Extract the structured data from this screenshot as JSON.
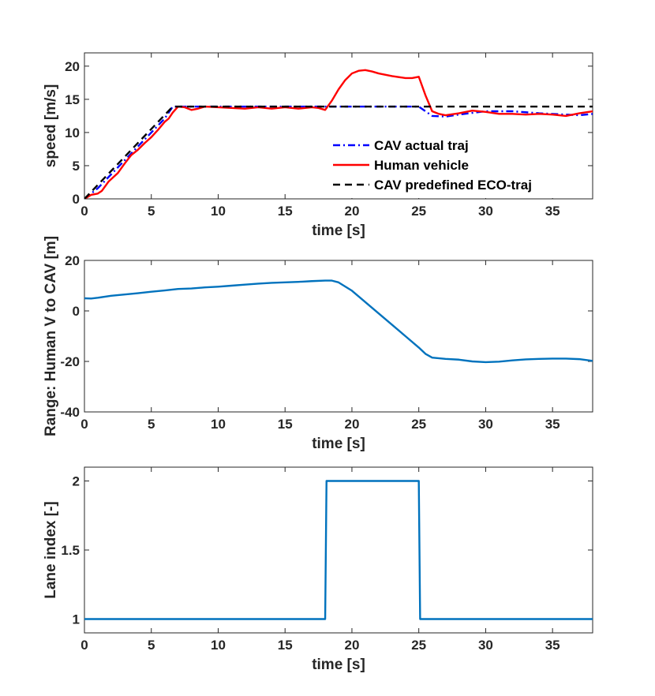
{
  "chart_data": [
    {
      "type": "line",
      "title": "",
      "xlabel": "time [s]",
      "ylabel": "speed [m/s]",
      "xlim": [
        0,
        38
      ],
      "ylim": [
        0,
        22
      ],
      "xticks": [
        0,
        5,
        10,
        15,
        20,
        25,
        30,
        35
      ],
      "yticks": [
        0,
        5,
        10,
        15,
        20
      ],
      "legend": {
        "position": "bottom-right"
      },
      "series": [
        {
          "name": "CAV actual traj",
          "color": "#0000ff",
          "style": "dashdot",
          "points": [
            [
              0,
              0
            ],
            [
              1,
              1.6
            ],
            [
              2,
              3.7
            ],
            [
              3,
              5.8
            ],
            [
              4,
              7.9
            ],
            [
              5,
              10.0
            ],
            [
              6,
              12.1
            ],
            [
              6.6,
              13.9
            ],
            [
              8,
              13.9
            ],
            [
              12,
              13.9
            ],
            [
              16,
              13.9
            ],
            [
              20,
              13.9
            ],
            [
              24,
              13.9
            ],
            [
              25,
              13.9
            ],
            [
              25.5,
              13.2
            ],
            [
              26,
              12.5
            ],
            [
              27,
              12.4
            ],
            [
              28,
              12.7
            ],
            [
              30,
              13.2
            ],
            [
              32,
              13.2
            ],
            [
              34,
              12.9
            ],
            [
              36,
              12.7
            ],
            [
              37,
              12.6
            ],
            [
              38,
              12.8
            ]
          ]
        },
        {
          "name": "Human vehicle",
          "color": "#ff0000",
          "style": "solid",
          "points": [
            [
              0,
              0
            ],
            [
              0.5,
              0.6
            ],
            [
              1,
              0.8
            ],
            [
              1.3,
              1.2
            ],
            [
              1.8,
              2.6
            ],
            [
              2.5,
              3.9
            ],
            [
              3,
              5.3
            ],
            [
              3.5,
              6.6
            ],
            [
              4,
              7.4
            ],
            [
              4.5,
              8.4
            ],
            [
              5,
              9.3
            ],
            [
              5.5,
              10.4
            ],
            [
              6,
              11.6
            ],
            [
              6.3,
              12.1
            ],
            [
              6.6,
              13.0
            ],
            [
              7,
              13.9
            ],
            [
              7.5,
              13.8
            ],
            [
              8,
              13.4
            ],
            [
              8.5,
              13.6
            ],
            [
              9,
              13.9
            ],
            [
              10,
              13.8
            ],
            [
              11,
              13.7
            ],
            [
              12,
              13.6
            ],
            [
              13,
              13.8
            ],
            [
              14,
              13.6
            ],
            [
              15,
              13.8
            ],
            [
              16,
              13.6
            ],
            [
              17,
              13.8
            ],
            [
              17.5,
              13.7
            ],
            [
              18,
              13.4
            ],
            [
              18.5,
              14.8
            ],
            [
              19,
              16.5
            ],
            [
              19.5,
              17.9
            ],
            [
              20,
              18.9
            ],
            [
              20.5,
              19.3
            ],
            [
              21,
              19.4
            ],
            [
              21.5,
              19.2
            ],
            [
              22,
              18.9
            ],
            [
              23,
              18.5
            ],
            [
              24,
              18.2
            ],
            [
              24.5,
              18.2
            ],
            [
              25,
              18.4
            ],
            [
              25.5,
              15.6
            ],
            [
              26,
              13.2
            ],
            [
              26.5,
              12.8
            ],
            [
              27,
              12.6
            ],
            [
              28,
              12.9
            ],
            [
              29,
              13.3
            ],
            [
              30,
              13.1
            ],
            [
              31,
              12.8
            ],
            [
              32,
              12.8
            ],
            [
              33,
              12.7
            ],
            [
              34,
              12.8
            ],
            [
              35,
              12.7
            ],
            [
              36,
              12.5
            ],
            [
              37,
              12.9
            ],
            [
              38,
              13.2
            ]
          ]
        },
        {
          "name": "CAV predefined ECO-traj",
          "color": "#000000",
          "style": "dashed",
          "points": [
            [
              0,
              0
            ],
            [
              6.6,
              13.9
            ],
            [
              38,
              13.9
            ]
          ]
        }
      ]
    },
    {
      "type": "line",
      "title": "",
      "xlabel": "time [s]",
      "ylabel": "Range: Human V to CAV [m]",
      "xlim": [
        0,
        38
      ],
      "ylim": [
        -40,
        20
      ],
      "xticks": [
        0,
        5,
        10,
        15,
        20,
        25,
        30,
        35
      ],
      "yticks": [
        -40,
        -20,
        0,
        20
      ],
      "series": [
        {
          "name": "range",
          "color": "#0072bd",
          "style": "solid",
          "points": [
            [
              0,
              5.0
            ],
            [
              0.5,
              4.9
            ],
            [
              1,
              5.2
            ],
            [
              2,
              6.0
            ],
            [
              3,
              6.5
            ],
            [
              4,
              7.0
            ],
            [
              5,
              7.6
            ],
            [
              6,
              8.1
            ],
            [
              7,
              8.7
            ],
            [
              8,
              8.9
            ],
            [
              9,
              9.3
            ],
            [
              10,
              9.6
            ],
            [
              11,
              10.0
            ],
            [
              12,
              10.4
            ],
            [
              13,
              10.8
            ],
            [
              14,
              11.1
            ],
            [
              15,
              11.3
            ],
            [
              16,
              11.5
            ],
            [
              17,
              11.8
            ],
            [
              18,
              12.0
            ],
            [
              18.5,
              12.0
            ],
            [
              19,
              11.3
            ],
            [
              20,
              8.0
            ],
            [
              21,
              3.5
            ],
            [
              22,
              -1.0
            ],
            [
              23,
              -5.5
            ],
            [
              24,
              -10.0
            ],
            [
              25,
              -14.5
            ],
            [
              25.5,
              -17.0
            ],
            [
              26,
              -18.5
            ],
            [
              27,
              -19.0
            ],
            [
              28,
              -19.3
            ],
            [
              29,
              -20.0
            ],
            [
              30,
              -20.3
            ],
            [
              31,
              -20.1
            ],
            [
              32,
              -19.6
            ],
            [
              33,
              -19.2
            ],
            [
              34,
              -19.0
            ],
            [
              35,
              -18.9
            ],
            [
              36,
              -18.9
            ],
            [
              37,
              -19.1
            ],
            [
              38,
              -19.8
            ]
          ]
        }
      ]
    },
    {
      "type": "line",
      "title": "",
      "xlabel": "time [s]",
      "ylabel": "Lane index [-]",
      "xlim": [
        0,
        38
      ],
      "ylim": [
        0.9,
        2.1
      ],
      "xticks": [
        0,
        5,
        10,
        15,
        20,
        25,
        30,
        35
      ],
      "yticks": [
        1,
        1.5,
        2
      ],
      "series": [
        {
          "name": "lane",
          "color": "#0072bd",
          "style": "solid",
          "points": [
            [
              0,
              1
            ],
            [
              18,
              1
            ],
            [
              18.1,
              2
            ],
            [
              25,
              2
            ],
            [
              25.1,
              1
            ],
            [
              38,
              1
            ]
          ]
        }
      ]
    }
  ]
}
